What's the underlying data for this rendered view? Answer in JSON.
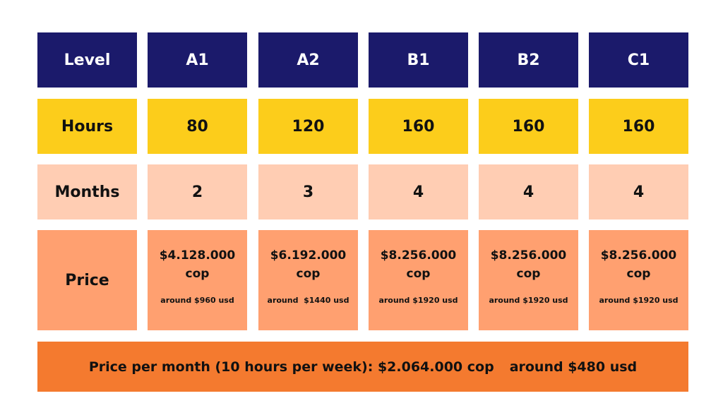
{
  "colors": {
    "level_row": "#1b1a6b",
    "hours_row": "#fccd1b",
    "months_row": "#ffcdb3",
    "price_row": "#ffa070",
    "footer": "#f47a2f"
  },
  "rows": {
    "level": {
      "label": "Level",
      "values": [
        "A1",
        "A2",
        "B1",
        "B2",
        "C1"
      ]
    },
    "hours": {
      "label": "Hours",
      "values": [
        "80",
        "120",
        "160",
        "160",
        "160"
      ]
    },
    "months": {
      "label": "Months",
      "values": [
        "2",
        "3",
        "4",
        "4",
        "4"
      ]
    },
    "price": {
      "label": "Price",
      "cop": [
        "$4.128.000 cop",
        "$6.192.000 cop",
        "$8.256.000 cop",
        "$8.256.000 cop",
        "$8.256.000 cop"
      ],
      "usd": [
        "around $960 usd",
        "around  $1440 usd",
        "around $1920 usd",
        "around $1920 usd",
        "around $1920 usd"
      ]
    }
  },
  "footer": {
    "monthly_price": "Price per month (10 hours per week): $2.064.000 cop",
    "monthly_usd": "around $480 usd"
  }
}
